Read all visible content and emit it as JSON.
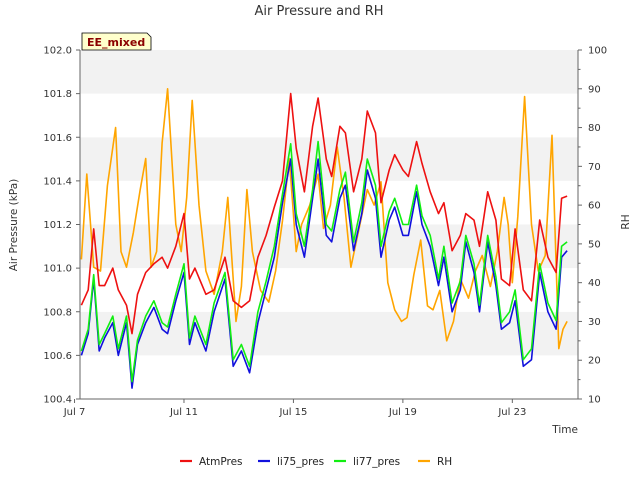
{
  "chart_data": {
    "type": "line",
    "title": "Air Pressure and RH",
    "badge": "EE_mixed",
    "xlabel": "Time",
    "ylabel": "Air Pressure (kPa)",
    "y2label": "RH",
    "xlim": [
      7.2,
      25.4
    ],
    "ylim": [
      100.4,
      102.0
    ],
    "y2lim": [
      10,
      100
    ],
    "x_ticks": [
      {
        "value": 7,
        "label": "Jul 7"
      },
      {
        "value": 11,
        "label": "Jul 11"
      },
      {
        "value": 15,
        "label": "Jul 15"
      },
      {
        "value": 19,
        "label": "Jul 19"
      },
      {
        "value": 23,
        "label": "Jul 23"
      }
    ],
    "y_ticks": [
      "100.4",
      "100.6",
      "100.8",
      "101.0",
      "101.2",
      "101.4",
      "101.6",
      "101.8",
      "102.0"
    ],
    "y2_ticks": [
      "10",
      "20",
      "30",
      "40",
      "50",
      "60",
      "70",
      "80",
      "90",
      "100"
    ],
    "grid": "horizontal alternating bands",
    "legend_position": "bottom",
    "colors": {
      "AtmPres": "#ee1111",
      "li75_pres": "#1111dd",
      "li77_pres": "#11ee11",
      "RH": "#ffa500"
    },
    "series": [
      {
        "name": "AtmPres",
        "axis": "left",
        "x": [
          7.25,
          7.5,
          7.7,
          7.9,
          8.1,
          8.4,
          8.6,
          8.9,
          9.1,
          9.3,
          9.6,
          9.9,
          10.2,
          10.4,
          10.7,
          11.0,
          11.2,
          11.4,
          11.8,
          12.1,
          12.5,
          12.8,
          13.1,
          13.4,
          13.7,
          14.0,
          14.3,
          14.6,
          14.9,
          15.1,
          15.4,
          15.7,
          15.9,
          16.2,
          16.4,
          16.7,
          16.9,
          17.2,
          17.5,
          17.7,
          18.0,
          18.2,
          18.5,
          18.7,
          19.0,
          19.2,
          19.5,
          19.7,
          20.0,
          20.3,
          20.5,
          20.8,
          21.1,
          21.3,
          21.6,
          21.8,
          22.1,
          22.4,
          22.6,
          22.9,
          23.1,
          23.4,
          23.7,
          24.0,
          24.3,
          24.6,
          24.8,
          25.0
        ],
        "values": [
          100.83,
          100.9,
          101.18,
          100.92,
          100.92,
          101.0,
          100.9,
          100.83,
          100.7,
          100.88,
          100.98,
          101.02,
          101.05,
          101.0,
          101.1,
          101.25,
          100.95,
          101.0,
          100.88,
          100.9,
          101.05,
          100.85,
          100.82,
          100.85,
          101.05,
          101.15,
          101.28,
          101.4,
          101.8,
          101.55,
          101.35,
          101.65,
          101.78,
          101.5,
          101.42,
          101.65,
          101.62,
          101.35,
          101.5,
          101.72,
          101.62,
          101.3,
          101.45,
          101.52,
          101.45,
          101.42,
          101.58,
          101.48,
          101.35,
          101.25,
          101.3,
          101.08,
          101.15,
          101.25,
          101.22,
          101.1,
          101.35,
          101.22,
          100.95,
          100.92,
          101.18,
          100.9,
          100.85,
          101.22,
          101.05,
          100.98,
          101.32,
          101.33
        ]
      },
      {
        "name": "li75_pres",
        "axis": "left",
        "x": [
          7.25,
          7.5,
          7.7,
          7.9,
          8.1,
          8.4,
          8.6,
          8.9,
          9.1,
          9.3,
          9.6,
          9.9,
          10.2,
          10.4,
          10.7,
          11.0,
          11.2,
          11.4,
          11.8,
          12.1,
          12.5,
          12.8,
          13.1,
          13.4,
          13.7,
          14.0,
          14.3,
          14.6,
          14.9,
          15.1,
          15.4,
          15.7,
          15.9,
          16.2,
          16.4,
          16.7,
          16.9,
          17.2,
          17.5,
          17.7,
          18.0,
          18.2,
          18.5,
          18.7,
          19.0,
          19.2,
          19.5,
          19.7,
          20.0,
          20.3,
          20.5,
          20.8,
          21.1,
          21.3,
          21.6,
          21.8,
          22.1,
          22.4,
          22.6,
          22.9,
          23.1,
          23.4,
          23.7,
          24.0,
          24.3,
          24.6,
          24.8,
          25.0
        ],
        "values": [
          100.6,
          100.7,
          100.95,
          100.62,
          100.68,
          100.75,
          100.6,
          100.75,
          100.45,
          100.65,
          100.75,
          100.82,
          100.72,
          100.7,
          100.85,
          100.98,
          100.65,
          100.75,
          100.62,
          100.8,
          100.95,
          100.55,
          100.62,
          100.52,
          100.75,
          100.9,
          101.05,
          101.3,
          101.5,
          101.2,
          101.05,
          101.32,
          101.5,
          101.15,
          101.12,
          101.32,
          101.38,
          101.08,
          101.25,
          101.45,
          101.32,
          101.05,
          101.22,
          101.28,
          101.15,
          101.15,
          101.35,
          101.2,
          101.1,
          100.92,
          101.05,
          100.8,
          100.9,
          101.12,
          100.98,
          100.8,
          101.12,
          100.92,
          100.72,
          100.75,
          100.85,
          100.55,
          100.58,
          100.98,
          100.8,
          100.72,
          101.05,
          101.08
        ]
      },
      {
        "name": "li77_pres",
        "axis": "left",
        "x": [
          7.25,
          7.5,
          7.7,
          7.9,
          8.1,
          8.4,
          8.6,
          8.9,
          9.1,
          9.3,
          9.6,
          9.9,
          10.2,
          10.4,
          10.7,
          11.0,
          11.2,
          11.4,
          11.8,
          12.1,
          12.5,
          12.8,
          13.1,
          13.4,
          13.7,
          14.0,
          14.3,
          14.6,
          14.9,
          15.1,
          15.4,
          15.7,
          15.9,
          16.2,
          16.4,
          16.7,
          16.9,
          17.2,
          17.5,
          17.7,
          18.0,
          18.2,
          18.5,
          18.7,
          19.0,
          19.2,
          19.5,
          19.7,
          20.0,
          20.3,
          20.5,
          20.8,
          21.1,
          21.3,
          21.6,
          21.8,
          22.1,
          22.4,
          22.6,
          22.9,
          23.1,
          23.4,
          23.7,
          24.0,
          24.3,
          24.6,
          24.8,
          25.0
        ],
        "values": [
          100.62,
          100.72,
          100.97,
          100.65,
          100.7,
          100.78,
          100.63,
          100.78,
          100.48,
          100.67,
          100.78,
          100.85,
          100.75,
          100.73,
          100.88,
          101.02,
          100.68,
          100.78,
          100.65,
          100.84,
          100.98,
          100.58,
          100.65,
          100.55,
          100.8,
          100.94,
          101.1,
          101.34,
          101.57,
          101.25,
          101.1,
          101.36,
          101.58,
          101.2,
          101.17,
          101.36,
          101.44,
          101.12,
          101.3,
          101.5,
          101.38,
          101.1,
          101.26,
          101.32,
          101.2,
          101.2,
          101.38,
          101.24,
          101.15,
          100.95,
          101.1,
          100.84,
          100.94,
          101.15,
          101.02,
          100.83,
          101.15,
          100.96,
          100.75,
          100.8,
          100.9,
          100.58,
          100.63,
          101.02,
          100.84,
          100.76,
          101.1,
          101.12
        ]
      },
      {
        "name": "RH",
        "axis": "right",
        "x": [
          7.25,
          7.45,
          7.7,
          7.95,
          8.2,
          8.5,
          8.7,
          8.9,
          9.15,
          9.4,
          9.6,
          9.8,
          10.0,
          10.2,
          10.4,
          10.7,
          10.9,
          11.1,
          11.3,
          11.55,
          11.8,
          12.1,
          12.4,
          12.6,
          12.9,
          13.1,
          13.3,
          13.5,
          13.8,
          14.1,
          14.35,
          14.6,
          14.85,
          15.1,
          15.3,
          15.6,
          15.9,
          16.1,
          16.35,
          16.6,
          16.85,
          17.1,
          17.4,
          17.7,
          17.95,
          18.2,
          18.45,
          18.7,
          18.95,
          19.15,
          19.4,
          19.65,
          19.9,
          20.1,
          20.35,
          20.6,
          20.85,
          21.1,
          21.4,
          21.65,
          21.9,
          22.2,
          22.45,
          22.7,
          22.85,
          23.0,
          23.2,
          23.45,
          23.7,
          23.95,
          24.2,
          24.45,
          24.7,
          24.85,
          25.0
        ],
        "values": [
          46,
          68,
          44,
          43,
          65,
          80,
          48,
          44,
          53,
          64,
          72,
          44,
          48,
          76,
          90,
          55,
          48,
          62,
          87,
          60,
          43,
          37,
          48,
          62,
          30,
          39,
          64,
          48,
          38,
          35,
          43,
          56,
          72,
          48,
          55,
          60,
          68,
          54,
          60,
          75,
          62,
          44,
          54,
          64,
          60,
          66,
          40,
          33,
          30,
          31,
          42,
          51,
          34,
          33,
          38,
          25,
          30,
          41,
          36,
          43,
          47,
          39,
          48,
          62,
          55,
          40,
          57,
          88,
          55,
          43,
          47,
          78,
          23,
          28,
          30
        ]
      }
    ]
  }
}
